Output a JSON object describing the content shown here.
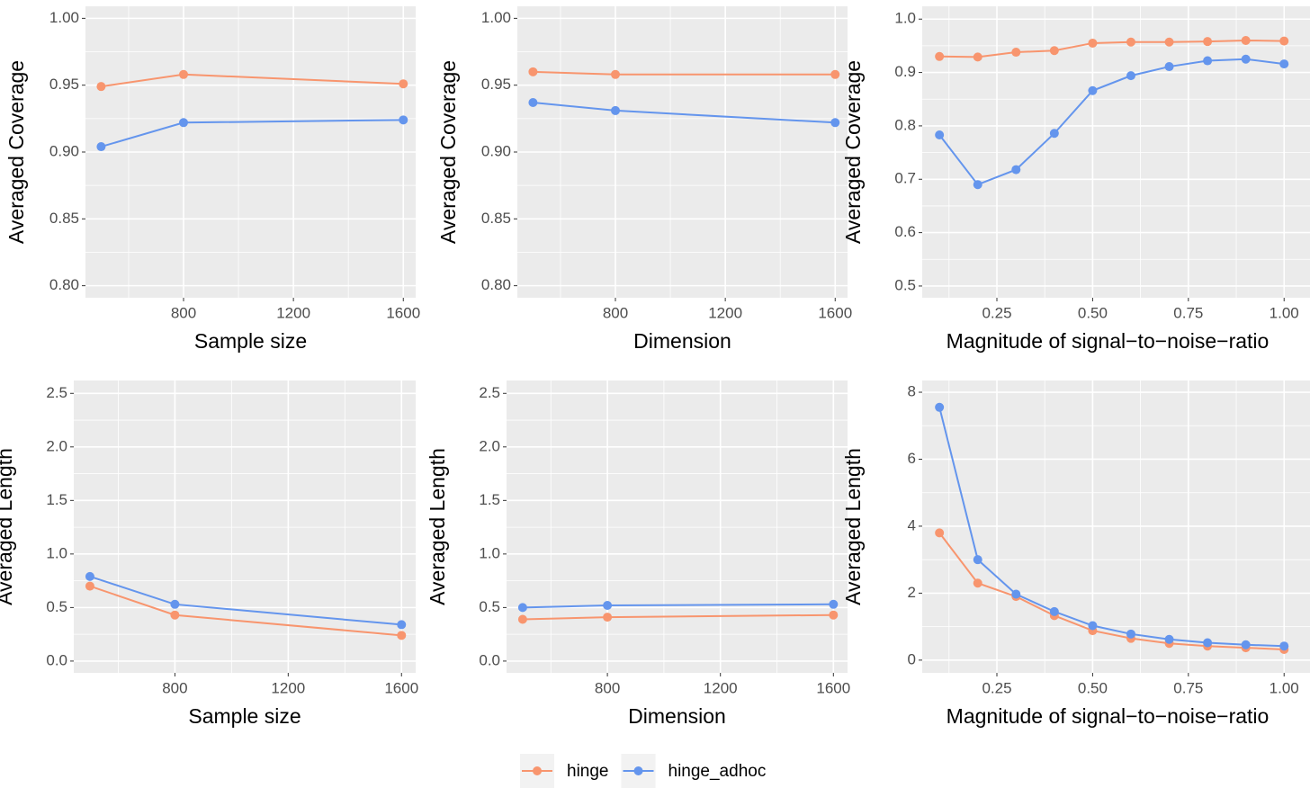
{
  "chart_data": [
    {
      "type": "line",
      "xlabel": "Sample size",
      "ylabel": "Averaged Coverage",
      "x": [
        500,
        800,
        1600
      ],
      "xlim": [
        443,
        1645
      ],
      "xticks": [
        800,
        1200,
        1600
      ],
      "ylim": [
        0.791,
        1.009
      ],
      "yticks": [
        {
          "value": 0.8,
          "label": "0.80"
        },
        0.85,
        {
          "value": 0.9,
          "label": "0.90"
        },
        0.95,
        {
          "value": 1,
          "label": "1.00"
        }
      ],
      "series": [
        {
          "name": "hinge",
          "color": "#f8956e",
          "values": [
            0.949,
            0.958,
            0.951
          ]
        },
        {
          "name": "hinge_adhoc",
          "color": "#6495ed",
          "values": [
            0.904,
            0.922,
            0.924
          ]
        }
      ]
    },
    {
      "type": "line",
      "xlabel": "Dimension",
      "ylabel": "Averaged Coverage",
      "x": [
        500,
        800,
        1600
      ],
      "xlim": [
        443,
        1645
      ],
      "xticks": [
        800,
        1200,
        1600
      ],
      "ylim": [
        0.791,
        1.009
      ],
      "yticks": [
        {
          "value": 0.8,
          "label": "0.80"
        },
        0.85,
        {
          "value": 0.9,
          "label": "0.90"
        },
        0.95,
        {
          "value": 1,
          "label": "1.00"
        }
      ],
      "series": [
        {
          "name": "hinge",
          "color": "#f8956e",
          "values": [
            0.96,
            0.958,
            0.958
          ]
        },
        {
          "name": "hinge_adhoc",
          "color": "#6495ed",
          "values": [
            0.937,
            0.931,
            0.922
          ]
        }
      ]
    },
    {
      "type": "line",
      "xlabel": "Magnitude of signal−to−noise−ratio",
      "ylabel": "Averaged Coverage",
      "x": [
        0.1,
        0.2,
        0.3,
        0.4,
        0.5,
        0.6,
        0.7,
        0.8,
        0.9,
        1.0
      ],
      "xlim": [
        0.055,
        1.077
      ],
      "xticks": [
        0.25,
        {
          "value": 0.5,
          "label": "0.50"
        },
        0.75,
        {
          "value": 1,
          "label": "1.00"
        }
      ],
      "ylim": [
        0.478,
        1.024
      ],
      "yticks": [
        0.5,
        0.6,
        0.7,
        0.8,
        0.9,
        {
          "value": 1,
          "label": "1.0"
        }
      ],
      "series": [
        {
          "name": "hinge",
          "color": "#f8956e",
          "values": [
            0.93,
            0.929,
            0.938,
            0.941,
            0.955,
            0.957,
            0.957,
            0.958,
            0.96,
            0.959
          ]
        },
        {
          "name": "hinge_adhoc",
          "color": "#6495ed",
          "values": [
            0.783,
            0.69,
            0.718,
            0.786,
            0.866,
            0.894,
            0.911,
            0.922,
            0.925,
            0.916
          ]
        }
      ]
    },
    {
      "type": "line",
      "xlabel": "Sample size",
      "ylabel": "Averaged Length",
      "x": [
        500,
        800,
        1600
      ],
      "xlim": [
        443,
        1650
      ],
      "xticks": [
        800,
        1200,
        1600
      ],
      "ylim": [
        -0.11,
        2.62
      ],
      "yticks": [
        {
          "value": 0,
          "label": "0.0"
        },
        0.5,
        {
          "value": 1,
          "label": "1.0"
        },
        1.5,
        {
          "value": 2,
          "label": "2.0"
        },
        2.5
      ],
      "series": [
        {
          "name": "hinge",
          "color": "#f8956e",
          "values": [
            0.7,
            0.43,
            0.24
          ]
        },
        {
          "name": "hinge_adhoc",
          "color": "#6495ed",
          "values": [
            0.79,
            0.53,
            0.34
          ]
        }
      ]
    },
    {
      "type": "line",
      "xlabel": "Dimension",
      "ylabel": "Averaged Length",
      "x": [
        500,
        800,
        1600
      ],
      "xlim": [
        443,
        1650
      ],
      "xticks": [
        800,
        1200,
        1600
      ],
      "ylim": [
        -0.11,
        2.62
      ],
      "yticks": [
        {
          "value": 0,
          "label": "0.0"
        },
        0.5,
        {
          "value": 1,
          "label": "1.0"
        },
        1.5,
        {
          "value": 2,
          "label": "2.0"
        },
        2.5
      ],
      "series": [
        {
          "name": "hinge",
          "color": "#f8956e",
          "values": [
            0.39,
            0.41,
            0.43
          ]
        },
        {
          "name": "hinge_adhoc",
          "color": "#6495ed",
          "values": [
            0.5,
            0.52,
            0.53
          ]
        }
      ]
    },
    {
      "type": "line",
      "xlabel": "Magnitude of signal−to−noise−ratio",
      "ylabel": "Averaged Length",
      "x": [
        0.1,
        0.2,
        0.3,
        0.4,
        0.5,
        0.6,
        0.7,
        0.8,
        0.9,
        1.0
      ],
      "xlim": [
        0.055,
        1.077
      ],
      "xticks": [
        0.25,
        {
          "value": 0.5,
          "label": "0.50"
        },
        0.75,
        {
          "value": 1,
          "label": "1.00"
        }
      ],
      "ylim": [
        -0.38,
        8.35
      ],
      "yticks": [
        0,
        2,
        4,
        6,
        8
      ],
      "series": [
        {
          "name": "hinge",
          "color": "#f8956e",
          "values": [
            3.8,
            2.3,
            1.9,
            1.33,
            0.88,
            0.65,
            0.5,
            0.42,
            0.37,
            0.32
          ]
        },
        {
          "name": "hinge_adhoc",
          "color": "#6495ed",
          "values": [
            7.55,
            3.0,
            1.97,
            1.45,
            1.03,
            0.78,
            0.62,
            0.52,
            0.46,
            0.42
          ]
        }
      ]
    }
  ]
}
